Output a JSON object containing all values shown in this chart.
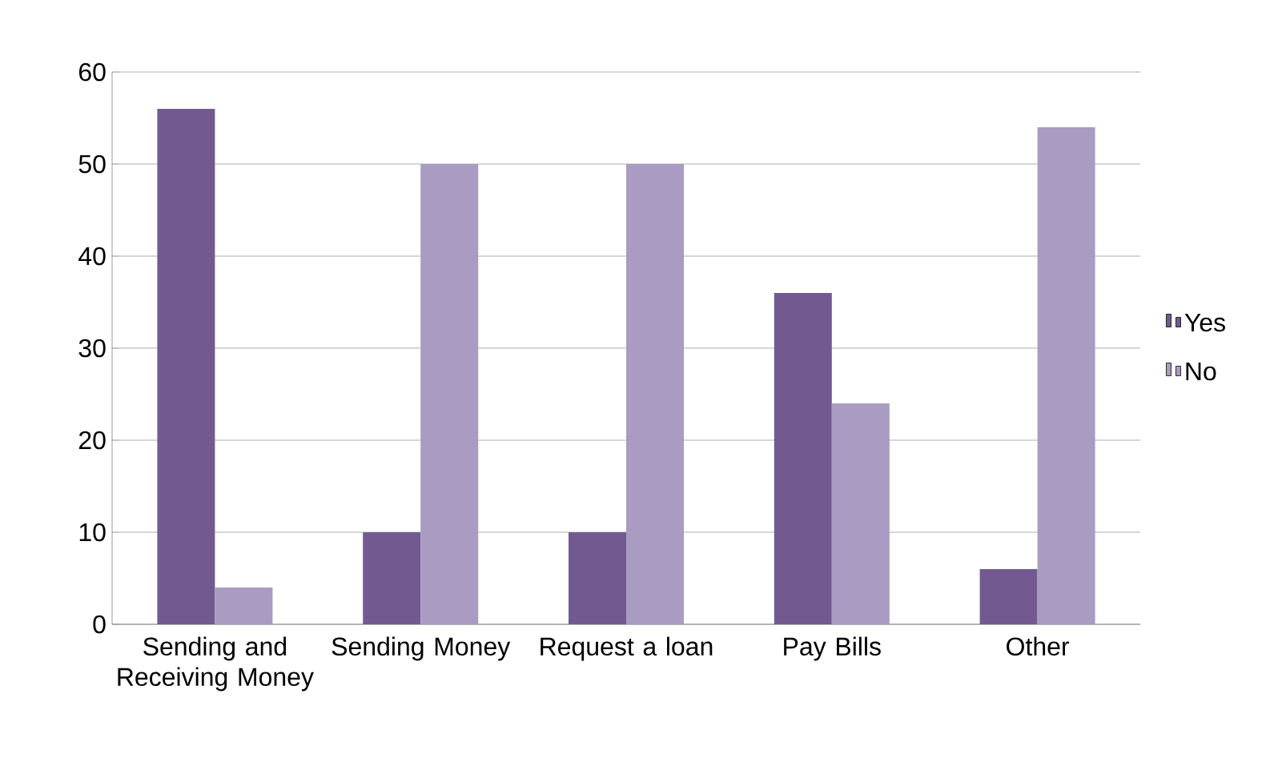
{
  "chart_data": {
    "type": "bar",
    "categories": [
      "Sending and Receiving Money",
      "Sending Money",
      "Request a loan",
      "Pay Bills",
      "Other"
    ],
    "series": [
      {
        "name": "Yes",
        "color": "#725a91",
        "values": [
          56,
          10,
          10,
          36,
          6
        ]
      },
      {
        "name": "No",
        "color": "#a99bc1",
        "values": [
          4,
          50,
          50,
          24,
          54
        ]
      }
    ],
    "ylim": [
      0,
      60
    ],
    "yticks": [
      0,
      10,
      20,
      30,
      40,
      50,
      60
    ],
    "grid": "y",
    "legend": "right"
  }
}
